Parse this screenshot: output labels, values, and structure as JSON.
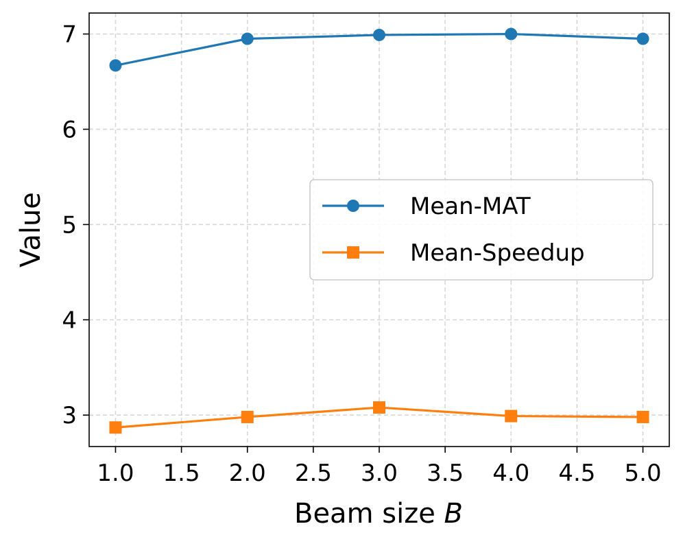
{
  "chart_data": {
    "type": "line",
    "title": "",
    "xlabel": "Beam size",
    "xlabel_var": "B",
    "ylabel": "Value",
    "xlim": [
      0.8,
      5.2
    ],
    "ylim": [
      2.67,
      7.22
    ],
    "grid": true,
    "legend_position": "center-right",
    "x_ticks": [
      1.0,
      1.5,
      2.0,
      2.5,
      3.0,
      3.5,
      4.0,
      4.5,
      5.0
    ],
    "x_tick_labels": [
      "1.0",
      "1.5",
      "2.0",
      "2.5",
      "3.0",
      "3.5",
      "4.0",
      "4.5",
      "5.0"
    ],
    "y_ticks": [
      3,
      4,
      5,
      6,
      7
    ],
    "y_tick_labels": [
      "3",
      "4",
      "5",
      "6",
      "7"
    ],
    "x": [
      1.0,
      2.0,
      3.0,
      4.0,
      5.0
    ],
    "series": [
      {
        "name": "Mean-MAT",
        "values": [
          6.67,
          6.95,
          6.99,
          7.0,
          6.95
        ],
        "color": "#1f77b4",
        "marker": "circle"
      },
      {
        "name": "Mean-Speedup",
        "values": [
          2.87,
          2.98,
          3.08,
          2.99,
          2.98
        ],
        "color": "#ff7f0e",
        "marker": "square"
      }
    ]
  }
}
